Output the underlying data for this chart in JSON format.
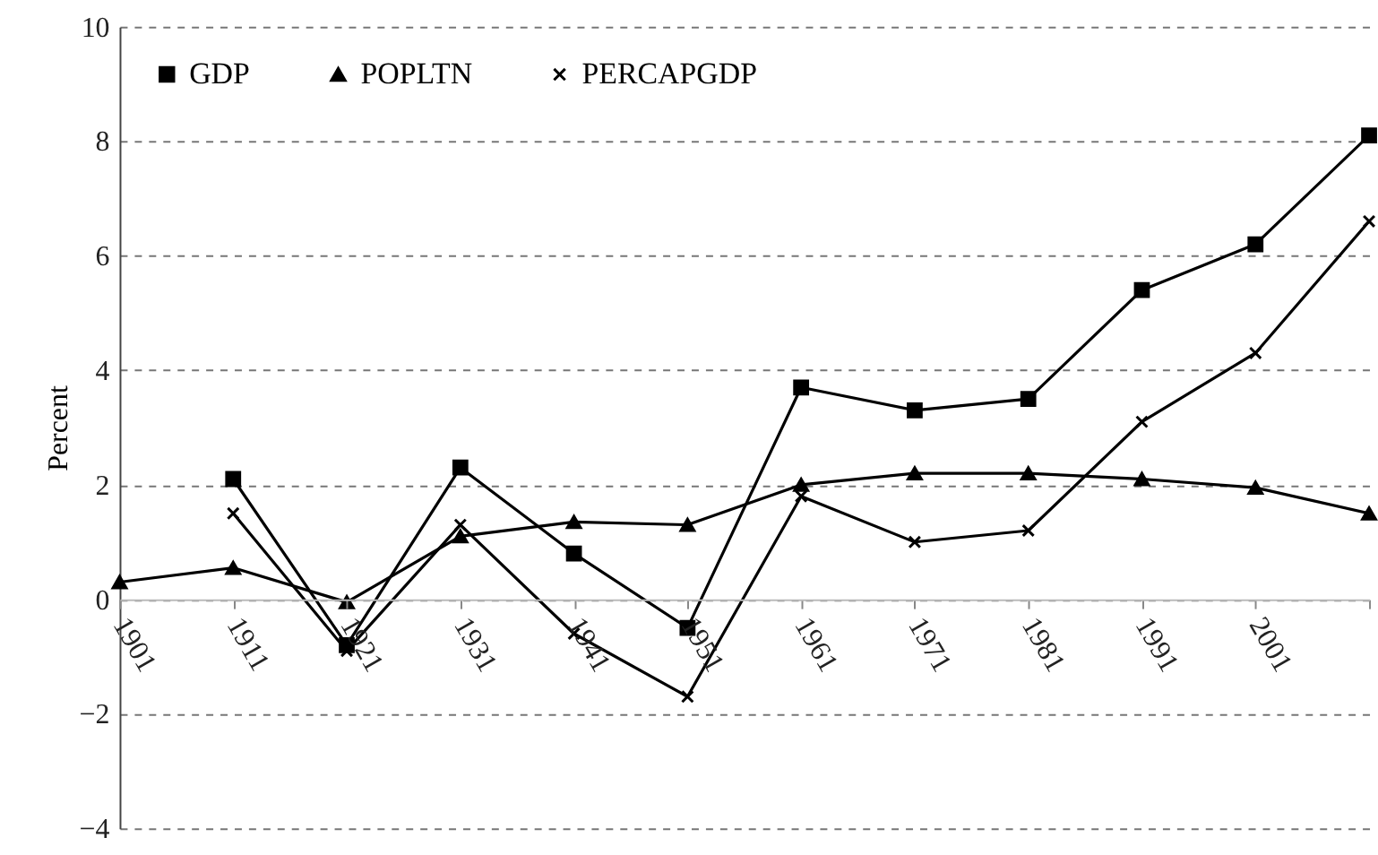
{
  "chart_data": {
    "type": "line",
    "ylabel": "Percent",
    "categories": [
      "1901",
      "1911",
      "1921",
      "1931",
      "1941",
      "1951",
      "1961",
      "1971",
      "1981",
      "1991",
      "2001",
      null
    ],
    "series": [
      {
        "name": "GDP",
        "color": "#000000",
        "marker": "square",
        "values": [
          null,
          2.1,
          -0.8,
          2.3,
          0.8,
          -0.5,
          3.7,
          3.3,
          3.5,
          5.4,
          6.2,
          8.1
        ]
      },
      {
        "name": "POPLTN",
        "color": "#000000",
        "marker": "triangle",
        "values": [
          0.3,
          0.55,
          -0.05,
          1.1,
          1.35,
          1.3,
          2.0,
          2.2,
          2.2,
          2.1,
          1.95,
          1.5
        ]
      },
      {
        "name": "PERCAPGDP",
        "color": "#000000",
        "marker": "cross",
        "values": [
          null,
          1.5,
          -0.9,
          1.3,
          -0.6,
          -1.7,
          1.8,
          1.0,
          1.2,
          3.1,
          4.3,
          6.6
        ]
      }
    ],
    "ylim": [
      -4,
      10
    ],
    "yticks": [
      -4,
      -2,
      0,
      2,
      4,
      6,
      8,
      10
    ],
    "grid": "y",
    "legend": "top left",
    "line_style": "solid"
  }
}
